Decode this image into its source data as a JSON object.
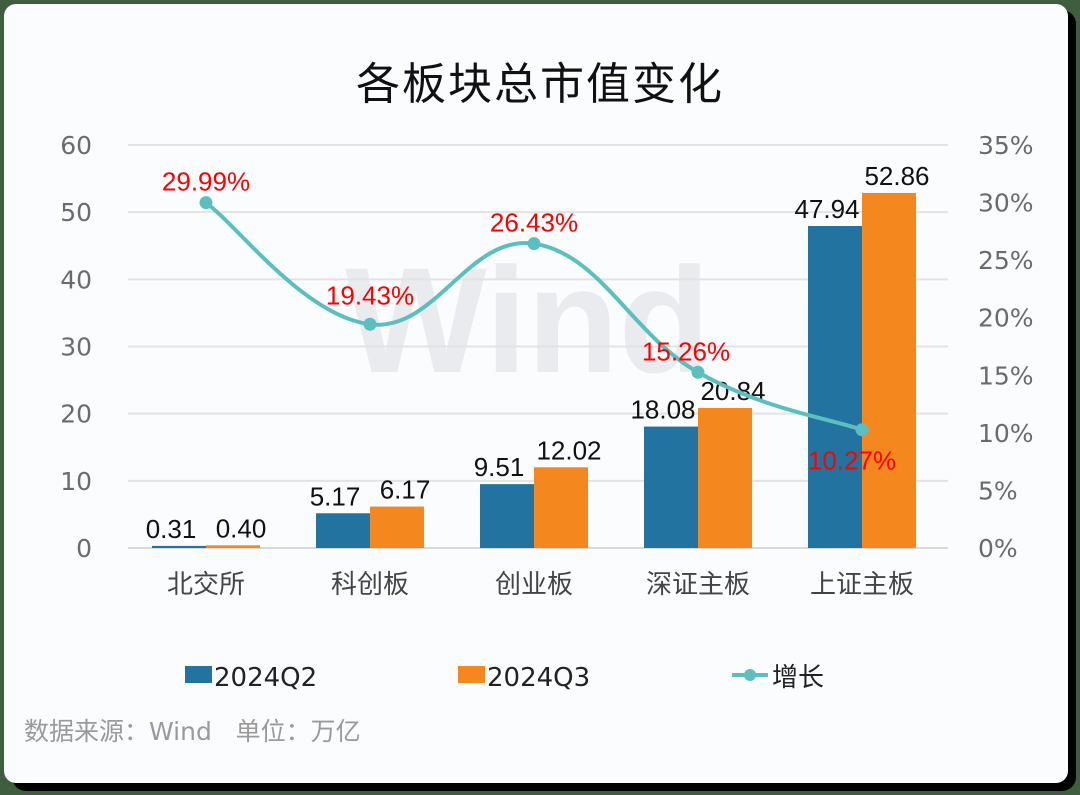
{
  "chart_data": {
    "type": "bar",
    "title": "各板块总市值变化",
    "categories": [
      "北交所",
      "科创板",
      "创业板",
      "深证主板",
      "上证主板"
    ],
    "series": [
      {
        "name": "2024Q2",
        "type": "bar",
        "axis": "left",
        "color": "#22739f",
        "values": [
          0.31,
          5.17,
          9.51,
          18.08,
          47.94
        ]
      },
      {
        "name": "2024Q3",
        "type": "bar",
        "axis": "left",
        "color": "#f5871f",
        "values": [
          0.4,
          6.17,
          12.02,
          20.84,
          52.86
        ]
      },
      {
        "name": "增长",
        "type": "line",
        "axis": "right",
        "color": "#5bbfc0",
        "values": [
          29.99,
          19.43,
          26.43,
          15.26,
          10.27
        ],
        "labels": [
          "29.99%",
          "19.43%",
          "26.43%",
          "15.26%",
          "10.27%"
        ],
        "label_color": "#ff0000"
      }
    ],
    "bar_labels": {
      "2024Q2": [
        "0.31",
        "5.17",
        "9.51",
        "18.08",
        "47.94"
      ],
      "2024Q3": [
        "0.40",
        "6.17",
        "12.02",
        "20.84",
        "52.86"
      ]
    },
    "ylim": [
      0,
      60
    ],
    "yticks": [
      "0",
      "10",
      "20",
      "30",
      "40",
      "50",
      "60"
    ],
    "y2lim": [
      0,
      35
    ],
    "y2ticks": [
      "0%",
      "5%",
      "10%",
      "15%",
      "20%",
      "25%",
      "30%",
      "35%"
    ],
    "xlabel": "",
    "ylabel": "",
    "grid": true,
    "legend_position": "bottom",
    "watermark": "Wind"
  },
  "footer": {
    "source": "数据来源：Wind   单位：万亿"
  }
}
